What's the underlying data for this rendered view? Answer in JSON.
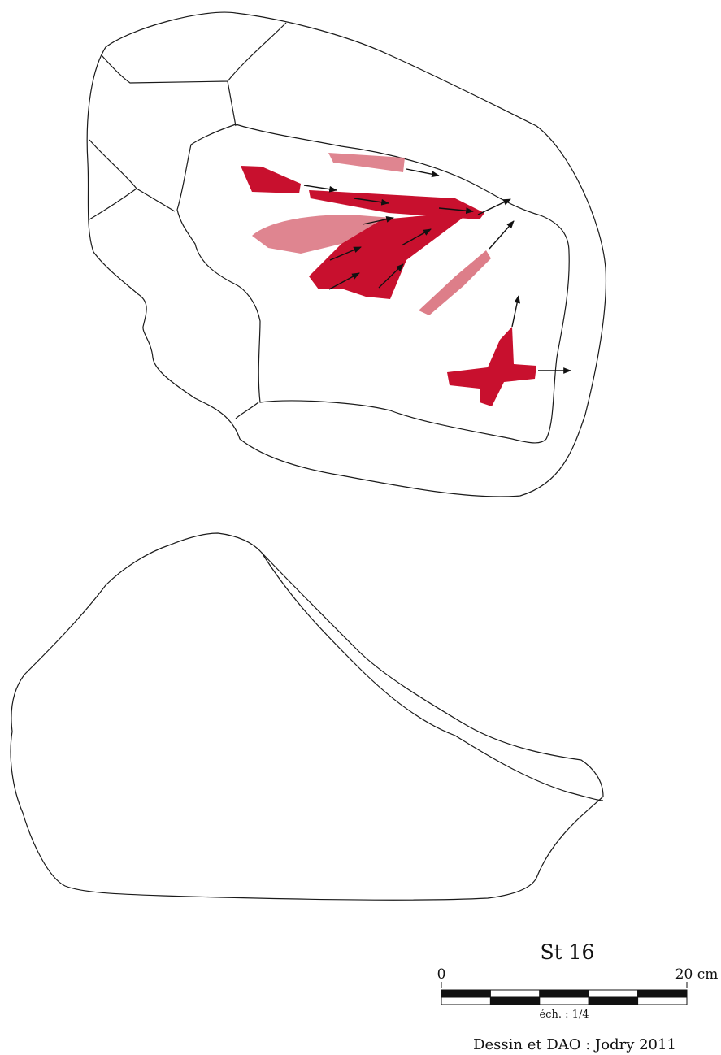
{
  "plate": {
    "specimen_label": "St 16",
    "credit": "Dessin et DAO : Jodry 2011"
  },
  "scale_bar": {
    "start_label": "0",
    "end_label": "20 cm",
    "scale_label": "éch. : 1/4",
    "segments": 5
  },
  "colors": {
    "cortex": "#e4e5e7",
    "surface": "#c6c7c9",
    "trace_dark": "#c8102e",
    "trace_light": "#d9707c",
    "arrow": "#111111"
  }
}
